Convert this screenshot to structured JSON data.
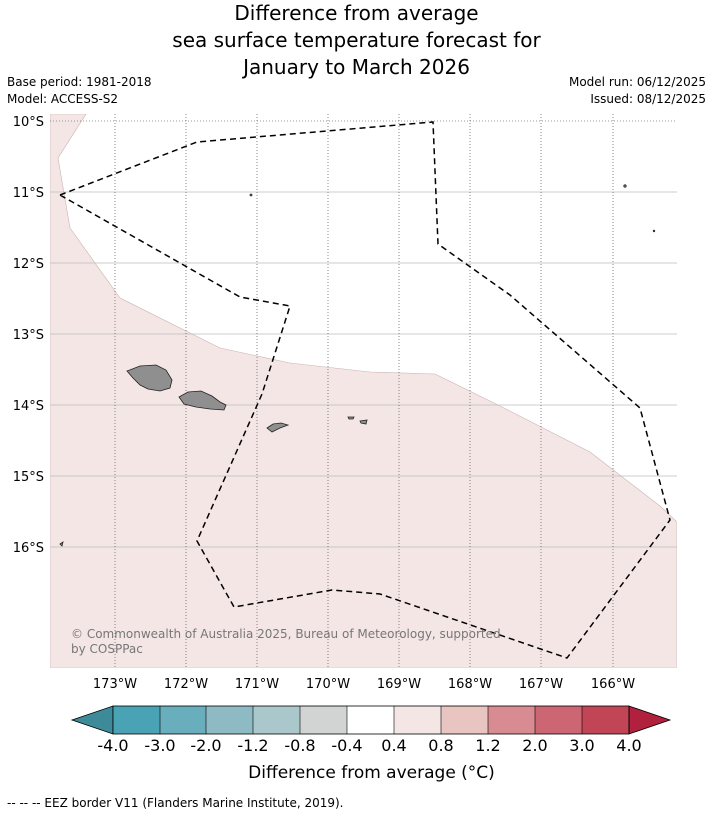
{
  "title": {
    "line1": "Difference from average",
    "line2": "sea surface temperature forecast for",
    "line3": "January to March 2026"
  },
  "meta": {
    "base_period": "Base period: 1981-2018",
    "model": "Model: ACCESS-S2",
    "model_run": "Model run: 06/12/2025",
    "issued": "Issued: 08/12/2025"
  },
  "map": {
    "lat_labels": [
      "10°S",
      "11°S",
      "12°S",
      "13°S",
      "14°S",
      "15°S",
      "16°S"
    ],
    "lon_labels": [
      "173°W",
      "172°W",
      "171°W",
      "170°W",
      "169°W",
      "168°W",
      "167°W",
      "166°W"
    ],
    "copyright_line1": "© Commonwealth of Australia 2025, Bureau of Meteorology, supported",
    "copyright_line2": "by COSPPac",
    "fill_color": "#f4e6e5",
    "land_color": "#8f8f8f"
  },
  "colorbar": {
    "title": "Difference from average (°C)",
    "tick_labels": [
      "-4.0",
      "-3.0",
      "-2.0",
      "-1.2",
      "-0.8",
      "-0.4",
      "0.4",
      "0.8",
      "1.2",
      "2.0",
      "3.0",
      "4.0"
    ],
    "colors": [
      "#3d8a99",
      "#49a3b4",
      "#68aebd",
      "#8ebac4",
      "#aac7cb",
      "#d2d4d4",
      "#ffffff",
      "#f4e6e5",
      "#e8c5c1",
      "#d98b92",
      "#cc6673",
      "#c24556",
      "#b1213d"
    ]
  },
  "footnote": "--  --  -- EEZ border V11 (Flanders Marine Institute, 2019)."
}
